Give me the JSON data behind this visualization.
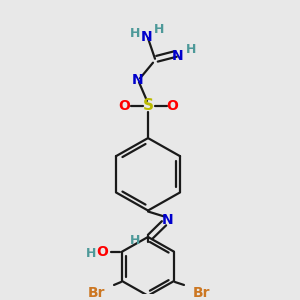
{
  "bg_color": "#e8e8e8",
  "bond_color": "#1a1a1a",
  "colors": {
    "N": "#0000cc",
    "O": "#ff0000",
    "S": "#bbbb00",
    "Br": "#cc7722",
    "H": "#4d9999",
    "C": "#1a1a1a"
  },
  "figsize": [
    3.0,
    3.0
  ],
  "dpi": 100
}
